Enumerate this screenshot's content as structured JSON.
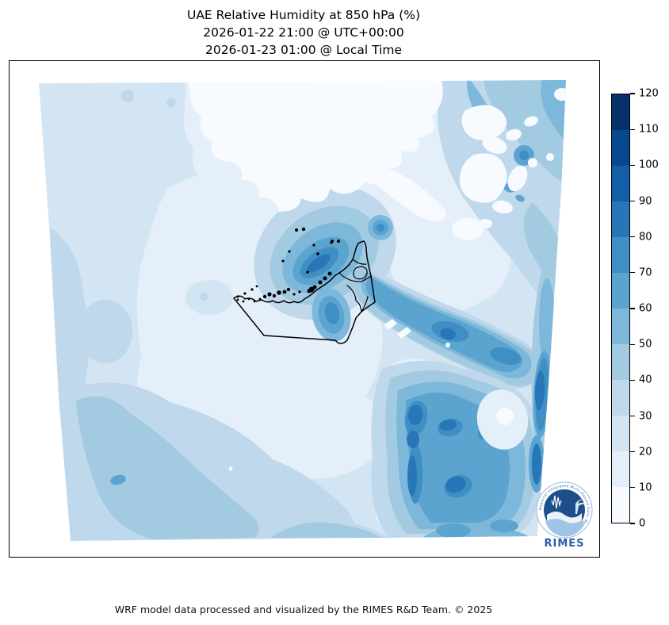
{
  "title": {
    "line1": "UAE Relative Humidity at 850 hPa (%)",
    "line2": "2026-01-22 21:00 @ UTC+00:00",
    "line3": "2026-01-23 01:00 @ Local Time"
  },
  "colorbar": {
    "min": 0,
    "max": 120,
    "step": 10,
    "ticks": [
      0,
      10,
      20,
      30,
      40,
      50,
      60,
      70,
      80,
      90,
      100,
      110,
      120
    ],
    "colors_low_to_high": [
      "#f7fbff",
      "#e4eff9",
      "#d3e4f3",
      "#bfd8ec",
      "#a2cbe2",
      "#7db8da",
      "#5ca4d0",
      "#3f8fc5",
      "#2777b8",
      "#135fa7",
      "#08488e",
      "#08306b"
    ]
  },
  "map": {
    "outlined_region": "United Arab Emirates",
    "field": "Relative Humidity at 850 hPa",
    "units": "%"
  },
  "logo": {
    "text": "RIMES",
    "ring_text": "Regional Integrated Multi-Hazard Early Warning System"
  },
  "footer": {
    "credit": "WRF model data processed and visualized by the RIMES R&D Team. © 2025"
  },
  "chart_data": {
    "type": "heatmap",
    "title": "UAE Relative Humidity at 850 hPa (%)",
    "units": "%",
    "levels": [
      0,
      10,
      20,
      30,
      40,
      50,
      60,
      70,
      80,
      90,
      100,
      110,
      120
    ],
    "colormap": "Blues",
    "legend_position": "right",
    "readings": [
      {
        "area": "UAE northwest coast / Dubai-Ras al Khaimah band",
        "value_range": "60-90"
      },
      {
        "area": "isolated maximum offshore northeast of the peninsula",
        "value_range": "70-80"
      },
      {
        "area": "dry zone north of UAE over the Gulf (top center)",
        "value_range": "0-10"
      },
      {
        "area": "desert interior background (west and south)",
        "value_range": "10-30"
      },
      {
        "area": "southeast mountain cluster (bottom right)",
        "value_range": "60-90"
      },
      {
        "area": "diagonal moist band toward eastern edge",
        "value_range": "50-80"
      },
      {
        "area": "northeast corner bands with dry pockets",
        "value_range": "20-60"
      }
    ]
  }
}
